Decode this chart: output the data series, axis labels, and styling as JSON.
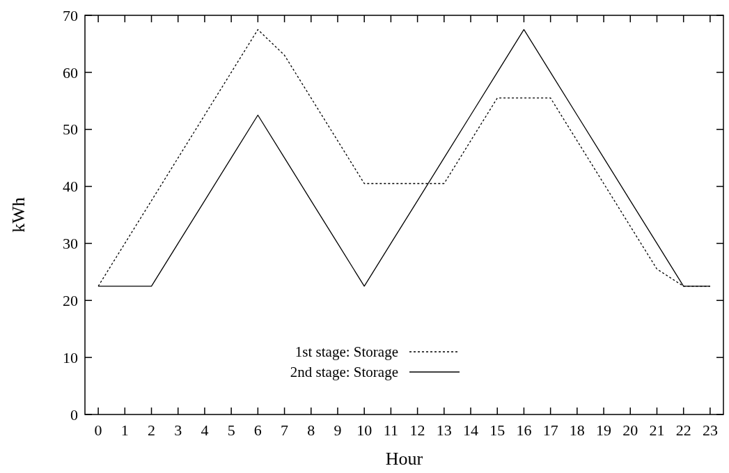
{
  "chart_data": {
    "type": "line",
    "xlabel": "Hour",
    "ylabel": "kWh",
    "x": [
      0,
      1,
      2,
      3,
      4,
      5,
      6,
      7,
      8,
      9,
      10,
      11,
      12,
      13,
      14,
      15,
      16,
      17,
      18,
      19,
      20,
      21,
      22,
      23
    ],
    "xlim": [
      -0.5,
      23.5
    ],
    "xticks": [
      0,
      1,
      2,
      3,
      4,
      5,
      6,
      7,
      8,
      9,
      10,
      11,
      12,
      13,
      14,
      15,
      16,
      17,
      18,
      19,
      20,
      21,
      22,
      23
    ],
    "ylim": [
      0,
      70
    ],
    "yticks": [
      0,
      10,
      20,
      30,
      40,
      50,
      60,
      70
    ],
    "grid": false,
    "legend": "bottom left",
    "series": [
      {
        "name": "1st stage: Storage",
        "color": "#000000",
        "line_style": "dotted",
        "values": [
          22.5,
          30,
          37.5,
          45,
          52.5,
          60,
          67.5,
          63,
          55.5,
          48,
          40.5,
          40.5,
          40.5,
          40.5,
          48,
          55.5,
          55.5,
          55.5,
          48,
          40.5,
          33,
          25.5,
          22.5,
          22.5
        ]
      },
      {
        "name": "2nd stage: Storage",
        "color": "#000000",
        "line_style": "solid",
        "values": [
          22.5,
          22.5,
          22.5,
          30,
          37.5,
          45,
          52.5,
          45,
          37.5,
          30,
          22.5,
          30,
          37.5,
          45,
          52.5,
          60,
          67.5,
          60,
          52.5,
          45,
          37.5,
          30,
          22.5,
          22.5
        ]
      }
    ]
  }
}
